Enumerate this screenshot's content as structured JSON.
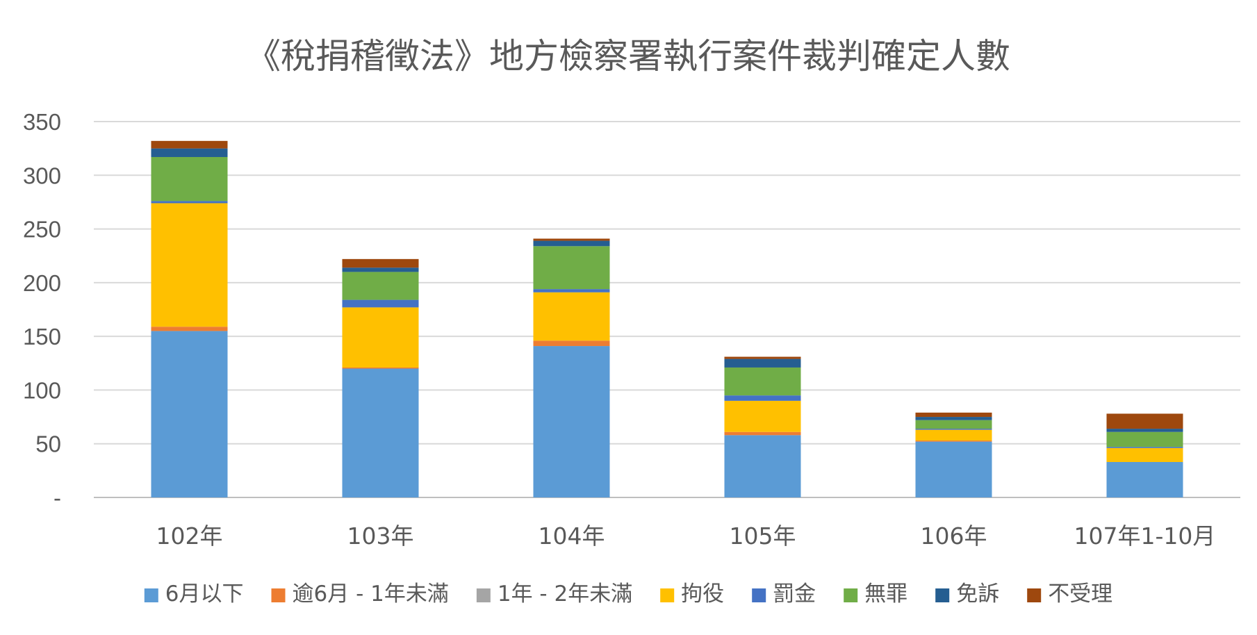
{
  "chart_data": {
    "type": "bar",
    "stacked": true,
    "title": "《稅捐稽徵法》地方檢察署執行案件裁判確定人數",
    "xlabel": "",
    "ylabel": "",
    "categories": [
      "102年",
      "103年",
      "104年",
      "105年",
      "106年",
      "107年1-10月"
    ],
    "ylim": [
      0,
      350
    ],
    "yticks": [
      0,
      50,
      100,
      150,
      200,
      250,
      300,
      350
    ],
    "ytick_labels": [
      "-",
      "50",
      "100",
      "150",
      "200",
      "250",
      "300",
      "350"
    ],
    "grid": true,
    "legend_position": "bottom",
    "series": [
      {
        "name": "6月以下",
        "color": "#5b9bd5",
        "values": [
          155,
          120,
          141,
          58,
          52,
          33
        ]
      },
      {
        "name": "逾6月 - 1年未滿",
        "color": "#ed7d31",
        "values": [
          4,
          1,
          5,
          3,
          1,
          0
        ]
      },
      {
        "name": "1年 - 2年未滿",
        "color": "#a5a5a5",
        "values": [
          0,
          0,
          0,
          0,
          0,
          0
        ]
      },
      {
        "name": "拘役",
        "color": "#ffc000",
        "values": [
          115,
          56,
          45,
          29,
          10,
          13
        ]
      },
      {
        "name": "罰金",
        "color": "#4472c4",
        "values": [
          2,
          7,
          3,
          5,
          1,
          1
        ]
      },
      {
        "name": "無罪",
        "color": "#70ad47",
        "values": [
          41,
          26,
          40,
          26,
          8,
          14
        ]
      },
      {
        "name": "免訴",
        "color": "#255e91",
        "values": [
          8,
          4,
          5,
          8,
          3,
          3
        ]
      },
      {
        "name": "不受理",
        "color": "#9e480e",
        "values": [
          7,
          8,
          2,
          2,
          4,
          14
        ]
      }
    ]
  }
}
